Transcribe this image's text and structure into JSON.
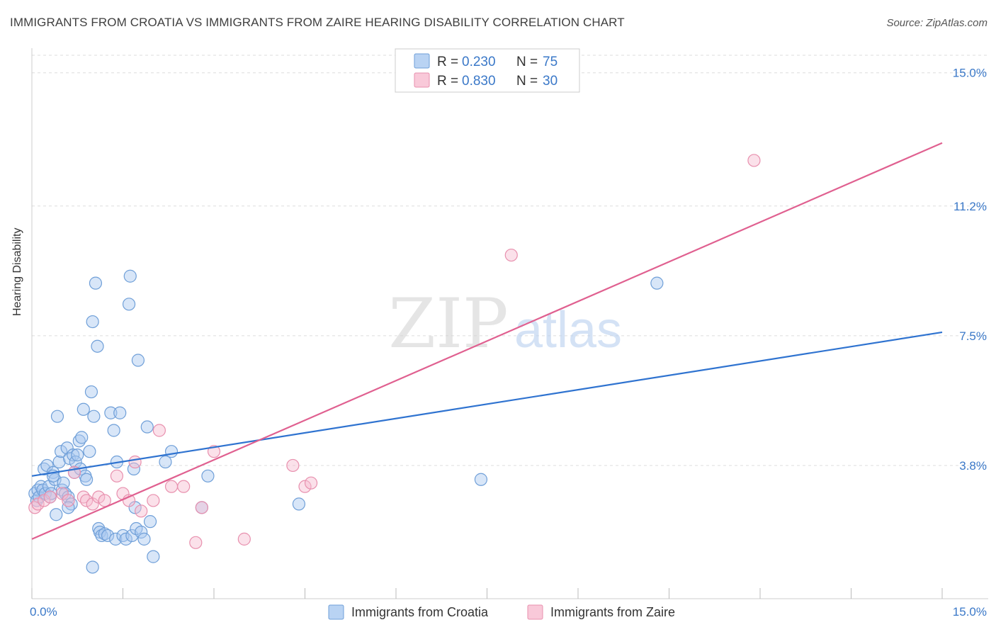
{
  "title": "IMMIGRANTS FROM CROATIA VS IMMIGRANTS FROM ZAIRE HEARING DISABILITY CORRELATION CHART",
  "source": "Source: ZipAtlas.com",
  "colors": {
    "blue_fill": "#a8c8f0",
    "blue_stroke": "#6f9fd8",
    "blue_line": "#2f73d0",
    "pink_fill": "#f7bcd0",
    "pink_stroke": "#e890ae",
    "pink_line": "#e06090",
    "axis_text": "#3a78c8",
    "grid": "#dddddd"
  },
  "watermark": {
    "zip": "ZIP",
    "atlas": "atlas"
  },
  "chart_data": {
    "type": "scatter",
    "title": "IMMIGRANTS FROM CROATIA VS IMMIGRANTS FROM ZAIRE HEARING DISABILITY CORRELATION CHART",
    "xlabel": "",
    "ylabel": "Hearing Disability",
    "xlim": [
      0,
      15
    ],
    "ylim": [
      0,
      15.5
    ],
    "x_tick_labels": [
      "0.0%",
      "15.0%"
    ],
    "y_ticks": [
      3.8,
      7.5,
      11.2,
      15.0
    ],
    "y_tick_labels": [
      "3.8%",
      "7.5%",
      "11.2%",
      "15.0%"
    ],
    "legend": [
      {
        "label": "R =",
        "r": "0.230",
        "n_label": "N =",
        "n": "75"
      },
      {
        "label": "R =",
        "r": "0.830",
        "n_label": "N =",
        "n": "30"
      }
    ],
    "series": [
      {
        "name": "Immigrants from Croatia",
        "r": 0.23,
        "n": 75,
        "trend": {
          "x0": 0,
          "y0": 3.5,
          "x1": 15,
          "y1": 7.6
        },
        "points": [
          [
            0.05,
            3.0
          ],
          [
            0.08,
            2.8
          ],
          [
            0.1,
            3.1
          ],
          [
            0.12,
            2.9
          ],
          [
            0.15,
            3.2
          ],
          [
            0.18,
            3.1
          ],
          [
            0.2,
            3.7
          ],
          [
            0.22,
            3.0
          ],
          [
            0.25,
            3.8
          ],
          [
            0.28,
            3.2
          ],
          [
            0.3,
            2.9
          ],
          [
            0.32,
            3.0
          ],
          [
            0.35,
            3.6
          ],
          [
            0.38,
            3.4
          ],
          [
            0.4,
            2.4
          ],
          [
            0.42,
            5.2
          ],
          [
            0.45,
            3.9
          ],
          [
            0.48,
            4.2
          ],
          [
            0.5,
            3.1
          ],
          [
            0.52,
            3.3
          ],
          [
            0.55,
            3.0
          ],
          [
            0.58,
            4.3
          ],
          [
            0.6,
            2.9
          ],
          [
            0.62,
            4.0
          ],
          [
            0.65,
            2.7
          ],
          [
            0.68,
            4.1
          ],
          [
            0.7,
            3.6
          ],
          [
            0.72,
            3.9
          ],
          [
            0.75,
            4.1
          ],
          [
            0.78,
            4.5
          ],
          [
            0.8,
            3.7
          ],
          [
            0.82,
            4.6
          ],
          [
            0.85,
            5.4
          ],
          [
            0.88,
            3.5
          ],
          [
            0.9,
            3.4
          ],
          [
            0.95,
            4.2
          ],
          [
            0.98,
            5.9
          ],
          [
            1.0,
            7.9
          ],
          [
            1.02,
            5.2
          ],
          [
            1.05,
            9.0
          ],
          [
            1.08,
            7.2
          ],
          [
            1.1,
            2.0
          ],
          [
            1.12,
            1.9
          ],
          [
            1.15,
            1.8
          ],
          [
            1.2,
            1.85
          ],
          [
            1.25,
            1.8
          ],
          [
            1.3,
            5.3
          ],
          [
            1.35,
            4.8
          ],
          [
            1.38,
            1.7
          ],
          [
            1.4,
            3.9
          ],
          [
            1.45,
            5.3
          ],
          [
            1.5,
            1.8
          ],
          [
            1.55,
            1.7
          ],
          [
            1.6,
            8.4
          ],
          [
            1.62,
            9.2
          ],
          [
            1.65,
            1.8
          ],
          [
            1.68,
            3.7
          ],
          [
            1.7,
            2.6
          ],
          [
            1.72,
            2.0
          ],
          [
            1.75,
            6.8
          ],
          [
            1.8,
            1.9
          ],
          [
            1.85,
            1.7
          ],
          [
            1.9,
            4.9
          ],
          [
            1.95,
            2.2
          ],
          [
            1.0,
            0.9
          ],
          [
            2.0,
            1.2
          ],
          [
            2.2,
            3.9
          ],
          [
            2.3,
            4.2
          ],
          [
            2.8,
            2.6
          ],
          [
            2.9,
            3.5
          ],
          [
            4.4,
            2.7
          ],
          [
            7.4,
            3.4
          ],
          [
            10.3,
            9.0
          ],
          [
            0.6,
            2.6
          ],
          [
            0.35,
            3.5
          ]
        ]
      },
      {
        "name": "Immigrants from Zaire",
        "r": 0.83,
        "n": 30,
        "trend": {
          "x0": 0,
          "y0": 1.7,
          "x1": 15,
          "y1": 13.0
        },
        "points": [
          [
            0.05,
            2.6
          ],
          [
            0.1,
            2.7
          ],
          [
            0.2,
            2.8
          ],
          [
            0.3,
            2.9
          ],
          [
            0.5,
            3.0
          ],
          [
            0.6,
            2.8
          ],
          [
            0.7,
            3.6
          ],
          [
            0.85,
            2.9
          ],
          [
            0.9,
            2.8
          ],
          [
            1.0,
            2.7
          ],
          [
            1.1,
            2.9
          ],
          [
            1.2,
            2.8
          ],
          [
            1.4,
            3.5
          ],
          [
            1.5,
            3.0
          ],
          [
            1.6,
            2.8
          ],
          [
            1.7,
            3.9
          ],
          [
            1.8,
            2.5
          ],
          [
            2.0,
            2.8
          ],
          [
            2.1,
            4.8
          ],
          [
            2.3,
            3.2
          ],
          [
            2.5,
            3.2
          ],
          [
            2.8,
            2.6
          ],
          [
            3.0,
            4.2
          ],
          [
            3.5,
            1.7
          ],
          [
            4.3,
            3.8
          ],
          [
            4.5,
            3.2
          ],
          [
            4.6,
            3.3
          ],
          [
            2.7,
            1.6
          ],
          [
            7.9,
            9.8
          ],
          [
            11.9,
            12.5
          ]
        ]
      }
    ]
  }
}
